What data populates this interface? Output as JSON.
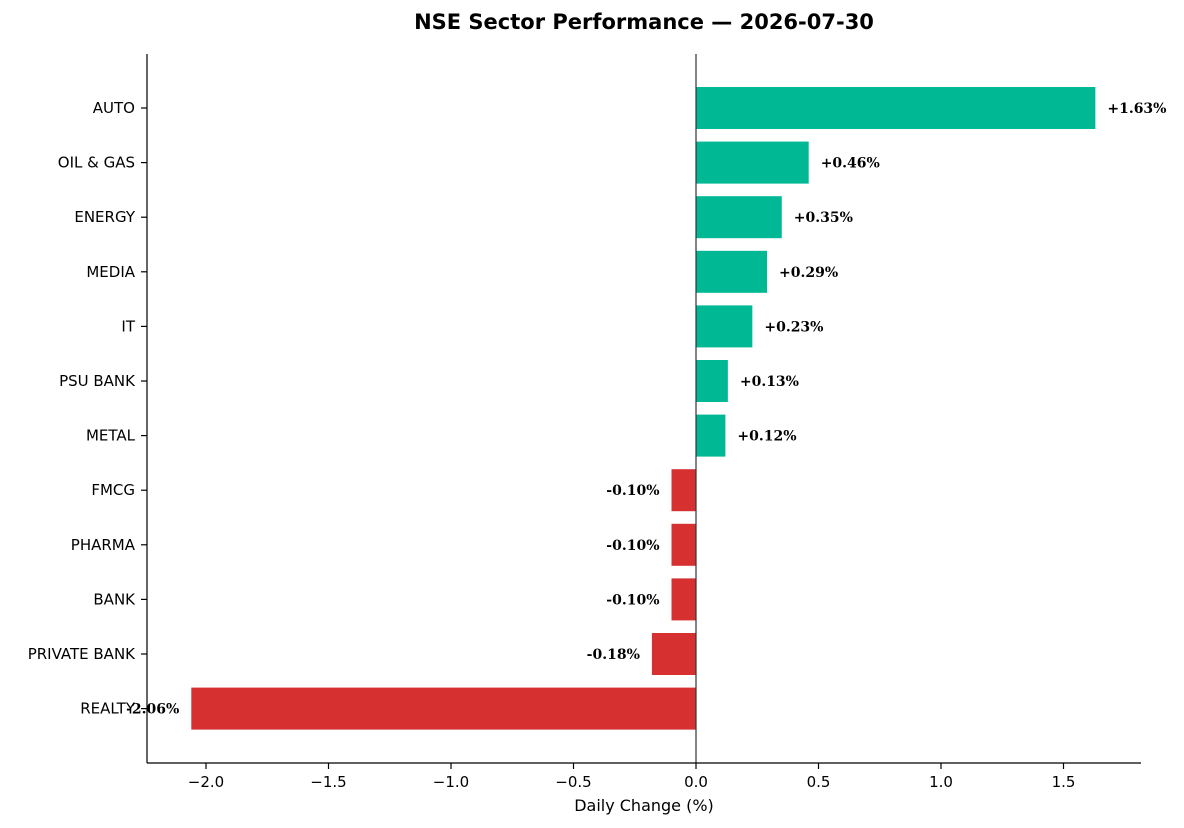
{
  "colors": {
    "positive": "#00b894",
    "negative": "#d63031"
  },
  "chart_data": {
    "type": "bar",
    "orientation": "horizontal",
    "title": "NSE Sector Performance — 2026-07-30",
    "xlabel": "Daily Change (%)",
    "ylabel": "",
    "xlim": [
      -2.25,
      1.8
    ],
    "xticks": [
      -2.0,
      -1.5,
      -1.0,
      -0.5,
      0.0,
      0.5,
      1.0,
      1.5
    ],
    "xtick_labels": [
      "−2.0",
      "−1.5",
      "−1.0",
      "−0.5",
      "0.0",
      "0.5",
      "1.0",
      "1.5"
    ],
    "grid": false,
    "categories": [
      "AUTO",
      "OIL & GAS",
      "ENERGY",
      "MEDIA",
      "IT",
      "PSU BANK",
      "METAL",
      "FMCG",
      "PHARMA",
      "BANK",
      "PRIVATE BANK",
      "REALTY"
    ],
    "values": [
      1.63,
      0.46,
      0.35,
      0.29,
      0.23,
      0.13,
      0.12,
      -0.1,
      -0.1,
      -0.1,
      -0.18,
      -2.06
    ],
    "value_labels": [
      "+1.63%",
      "+0.46%",
      "+0.35%",
      "+0.29%",
      "+0.23%",
      "+0.13%",
      "+0.12%",
      "-0.10%",
      "-0.10%",
      "-0.10%",
      "-0.18%",
      "-2.06%"
    ]
  }
}
